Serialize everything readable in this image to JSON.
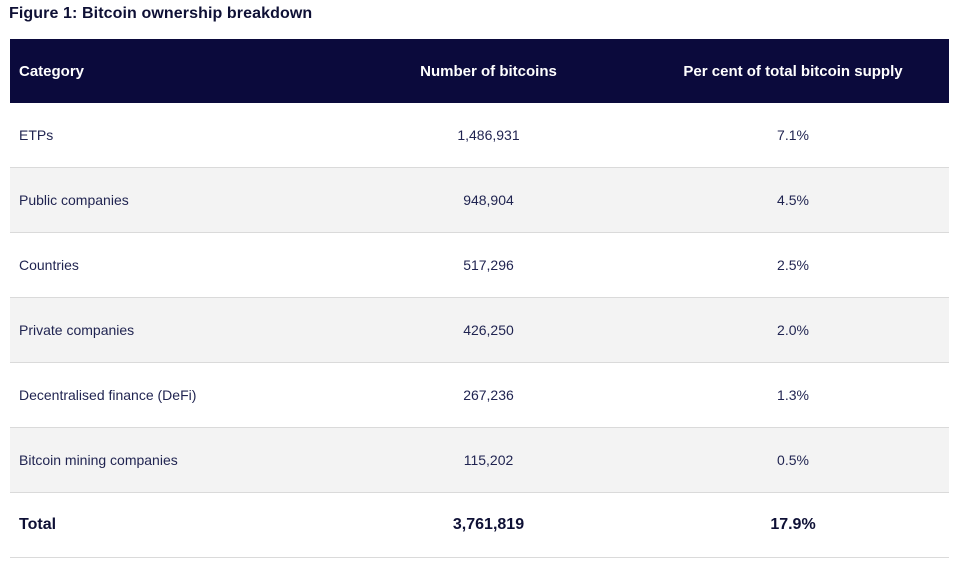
{
  "figure": {
    "title": "Figure 1: Bitcoin ownership breakdown"
  },
  "table": {
    "headers": [
      "Category",
      "Number of bitcoins",
      "Per cent of total bitcoin supply"
    ],
    "rows": [
      {
        "category": "ETPs",
        "bitcoins": "1,486,931",
        "percent": "7.1%"
      },
      {
        "category": "Public companies",
        "bitcoins": "948,904",
        "percent": "4.5%"
      },
      {
        "category": "Countries",
        "bitcoins": "517,296",
        "percent": "2.5%"
      },
      {
        "category": "Private companies",
        "bitcoins": "426,250",
        "percent": "2.0%"
      },
      {
        "category": "Decentralised finance (DeFi)",
        "bitcoins": "267,236",
        "percent": "1.3%"
      },
      {
        "category": "Bitcoin mining companies",
        "bitcoins": "115,202",
        "percent": "0.5%"
      }
    ],
    "total": {
      "category": "Total",
      "bitcoins": "3,761,819",
      "percent": "17.9%"
    }
  },
  "colors": {
    "header_bg": "#0b0a3c",
    "header_text": "#ffffff",
    "body_text": "#1f2350",
    "stripe_bg": "#f3f3f3",
    "divider": "#dadada"
  }
}
